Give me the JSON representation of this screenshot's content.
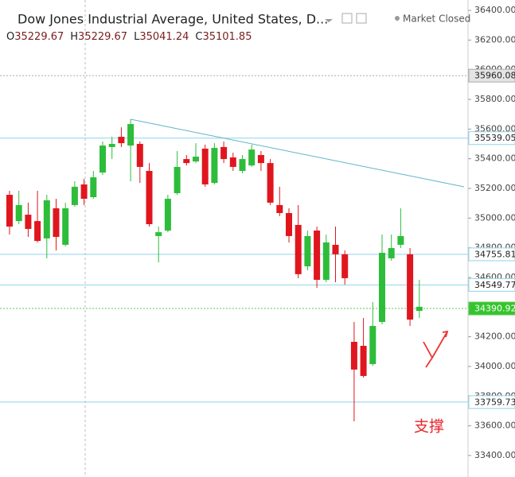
{
  "header": {
    "title": "Dow Jones Industrial Average, United States, D...",
    "status": "Market Closed",
    "ohlc": [
      {
        "label": "O",
        "value": 35229.67
      },
      {
        "label": "H",
        "value": 35229.67
      },
      {
        "label": "L",
        "value": 35041.24
      },
      {
        "label": "C",
        "value": 35101.85
      }
    ]
  },
  "chart_data": {
    "type": "candlestick",
    "open": [
      35157,
      34980,
      35023,
      34980,
      34863,
      35066,
      34820,
      35088,
      35227,
      35141,
      35307,
      35479,
      35548,
      35489,
      35500,
      35318,
      34879,
      34916,
      35168,
      35398,
      35382,
      35468,
      35237,
      35479,
      35409,
      35318,
      35355,
      35425,
      35371,
      35088,
      35034,
      34954,
      34675,
      34916,
      34584,
      34820,
      34756,
      34166,
      34139,
      34016,
      34300,
      34729,
      34820,
      34756,
      34375
    ],
    "high": [
      35184,
      35184,
      35104,
      35184,
      35157,
      35130,
      35104,
      35248,
      35264,
      35318,
      35516,
      35548,
      35612,
      35666,
      35516,
      35371,
      34943,
      35157,
      35452,
      35425,
      35505,
      35495,
      35505,
      35516,
      35441,
      35425,
      35495,
      35452,
      35398,
      35211,
      35066,
      35088,
      34916,
      34943,
      34889,
      34943,
      34782,
      34300,
      34327,
      34434,
      34889,
      34889,
      35066,
      34798,
      34584
    ],
    "low": [
      34889,
      34959,
      34873,
      34836,
      34729,
      34782,
      34809,
      35077,
      35088,
      35130,
      35291,
      35398,
      35479,
      35248,
      35237,
      34943,
      34702,
      34905,
      35157,
      35355,
      35371,
      35211,
      35227,
      35371,
      35318,
      35302,
      35345,
      35318,
      35088,
      35013,
      34836,
      34595,
      34648,
      34530,
      34568,
      34568,
      34552,
      33630,
      33925,
      34005,
      34284,
      34713,
      34798,
      34273,
      34327
    ],
    "close": [
      34943,
      35088,
      34927,
      34846,
      35120,
      34873,
      35066,
      35211,
      35130,
      35275,
      35489,
      35500,
      35505,
      35634,
      35345,
      34959,
      34905,
      35130,
      35345,
      35371,
      35414,
      35227,
      35473,
      35398,
      35345,
      35398,
      35462,
      35371,
      35104,
      35034,
      34879,
      34622,
      34879,
      34584,
      34836,
      34756,
      34595,
      33979,
      33936,
      34273,
      34766,
      34798,
      34879,
      34316,
      34402
    ],
    "up_color": "#2dbd3a",
    "down_color": "#e0161e",
    "ylim": [
      33255,
      36470
    ],
    "yticks": [
      {
        "value": 36400,
        "label": "36400.00"
      },
      {
        "value": 36200,
        "label": "36200.00"
      },
      {
        "value": 36000,
        "label": "36000.00"
      },
      {
        "value": 35800,
        "label": "35800.00"
      },
      {
        "value": 35600,
        "label": "35600.00"
      },
      {
        "value": 35400,
        "label": "35400.00"
      },
      {
        "value": 35200,
        "label": "35200.00"
      },
      {
        "value": 35000,
        "label": "35000.00"
      },
      {
        "value": 34800,
        "label": "34800.00"
      },
      {
        "value": 34600,
        "label": "34600.00"
      },
      {
        "value": 34400,
        "label": "34400.00"
      },
      {
        "value": 34200,
        "label": "34200.00"
      },
      {
        "value": 34000,
        "label": "34000.00"
      },
      {
        "value": 33800,
        "label": "33800.00"
      },
      {
        "value": 33600,
        "label": "33600.00"
      },
      {
        "value": 33400,
        "label": "33400.00"
      }
    ],
    "levels": [
      {
        "value": 35960.08,
        "color": "#aaaaaa",
        "label_bg": "#e4e4e4",
        "label_color": "#222222",
        "dash": true
      },
      {
        "value": 35539.05,
        "color": "#8fd3ea",
        "label_bg": "#ffffff",
        "label_color": "#222222",
        "dash": false
      },
      {
        "value": 34755.81,
        "color": "#8fd3ea",
        "label_bg": "#ffffff",
        "label_color": "#222222",
        "dash": false
      },
      {
        "value": 34549.77,
        "color": "#8fd3ea",
        "label_bg": "#ffffff",
        "label_color": "#222222",
        "dash": false
      },
      {
        "value": 34390.92,
        "color": "#5cc85c",
        "label_bg": "#35c42d",
        "label_color": "#ffffff",
        "dash": true
      },
      {
        "value": 33759.73,
        "color": "#8fd3ea",
        "label_bg": "#ffffff",
        "label_color": "#222222",
        "dash": false
      }
    ],
    "trendline": {
      "x": [
        13,
        48.8
      ],
      "y": [
        35666,
        35211
      ],
      "color": "#5fb4c8"
    },
    "annotation": "支撑"
  }
}
